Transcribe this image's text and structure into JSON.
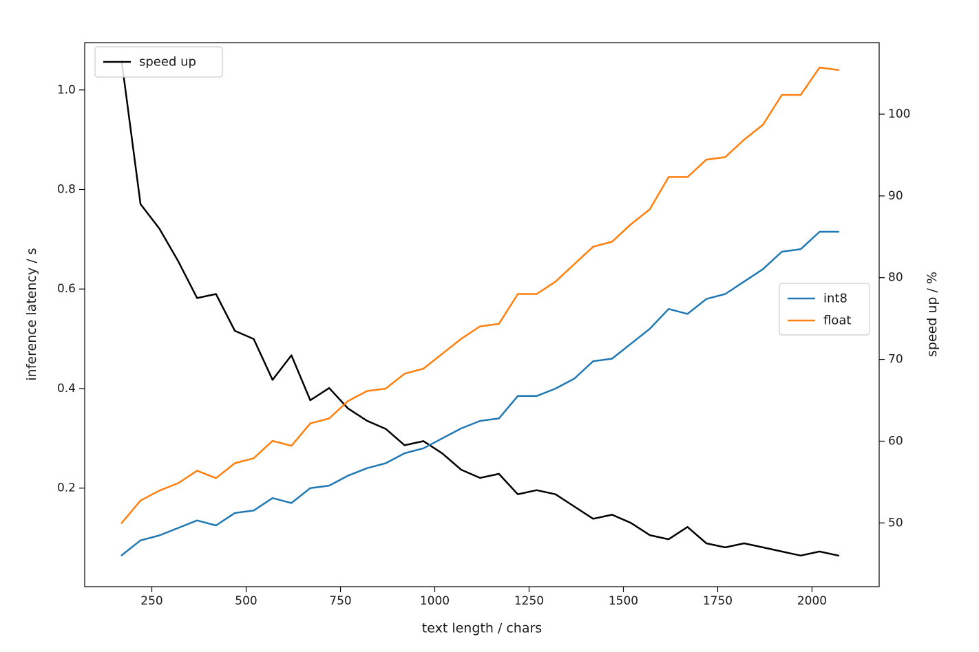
{
  "figure": {
    "background": "#ffffff",
    "spine_color": "#000000"
  },
  "chart_data": {
    "type": "line",
    "title": "",
    "xlabel": "text length / chars",
    "ylabel_left": "inference latency / s",
    "ylabel_right": "speed up / %",
    "grid": false,
    "xlim": [
      72,
      2178
    ],
    "ylim_left": [
      0.002,
      1.095
    ],
    "ylim_right": [
      42.2,
      108.75
    ],
    "x_ticks": [
      {
        "v": 250,
        "label": "250"
      },
      {
        "v": 500,
        "label": "500"
      },
      {
        "v": 750,
        "label": "750"
      },
      {
        "v": 1000,
        "label": "1000"
      },
      {
        "v": 1250,
        "label": "1250"
      },
      {
        "v": 1500,
        "label": "1500"
      },
      {
        "v": 1750,
        "label": "1750"
      },
      {
        "v": 2000,
        "label": "2000"
      }
    ],
    "y_ticks_left": [
      {
        "v": 0.2,
        "label": "0.2"
      },
      {
        "v": 0.4,
        "label": "0.4"
      },
      {
        "v": 0.6,
        "label": "0.6"
      },
      {
        "v": 0.8,
        "label": "0.8"
      },
      {
        "v": 1.0,
        "label": "1.0"
      }
    ],
    "y_ticks_right": [
      {
        "v": 50,
        "label": "50"
      },
      {
        "v": 60,
        "label": "60"
      },
      {
        "v": 70,
        "label": "70"
      },
      {
        "v": 80,
        "label": "80"
      },
      {
        "v": 90,
        "label": "90"
      },
      {
        "v": 100,
        "label": "100"
      }
    ],
    "x": [
      170,
      220,
      270,
      320,
      370,
      420,
      470,
      520,
      570,
      620,
      670,
      720,
      770,
      820,
      870,
      920,
      970,
      1020,
      1070,
      1120,
      1170,
      1220,
      1270,
      1320,
      1370,
      1420,
      1470,
      1520,
      1570,
      1620,
      1670,
      1720,
      1770,
      1820,
      1870,
      1920,
      1970,
      2020,
      2070
    ],
    "series": [
      {
        "name": "speed up",
        "axis": "right",
        "color": "#000000",
        "values": [
          106.5,
          89,
          86,
          82,
          77.5,
          78,
          73.5,
          72.5,
          67.5,
          70.5,
          65,
          66.5,
          64,
          62.5,
          61.5,
          59.5,
          60,
          58.5,
          56.5,
          55.5,
          56,
          53.5,
          54,
          53.5,
          52,
          50.5,
          51,
          50,
          48.5,
          48,
          49.5,
          47.5,
          47,
          47.5,
          47,
          46.5,
          46,
          46.5,
          46
        ]
      },
      {
        "name": "int8",
        "axis": "left",
        "color": "#1f77b4",
        "values": [
          0.065,
          0.095,
          0.105,
          0.12,
          0.135,
          0.125,
          0.15,
          0.155,
          0.18,
          0.17,
          0.2,
          0.205,
          0.225,
          0.24,
          0.25,
          0.27,
          0.28,
          0.3,
          0.32,
          0.335,
          0.34,
          0.385,
          0.385,
          0.4,
          0.42,
          0.455,
          0.46,
          0.49,
          0.52,
          0.56,
          0.55,
          0.58,
          0.59,
          0.615,
          0.64,
          0.675,
          0.68,
          0.715,
          0.715
        ]
      },
      {
        "name": "float",
        "axis": "left",
        "color": "#ff7f0e",
        "values": [
          0.13,
          0.175,
          0.195,
          0.21,
          0.235,
          0.22,
          0.25,
          0.26,
          0.295,
          0.285,
          0.33,
          0.34,
          0.375,
          0.395,
          0.4,
          0.43,
          0.44,
          0.47,
          0.5,
          0.525,
          0.53,
          0.59,
          0.59,
          0.615,
          0.65,
          0.685,
          0.695,
          0.73,
          0.76,
          0.825,
          0.825,
          0.86,
          0.865,
          0.9,
          0.93,
          0.99,
          0.99,
          1.045,
          1.04
        ]
      }
    ],
    "legends": [
      {
        "position": "upper-left",
        "entries": [
          "speed up"
        ]
      },
      {
        "position": "middle-right",
        "entries": [
          "int8",
          "float"
        ]
      }
    ]
  }
}
